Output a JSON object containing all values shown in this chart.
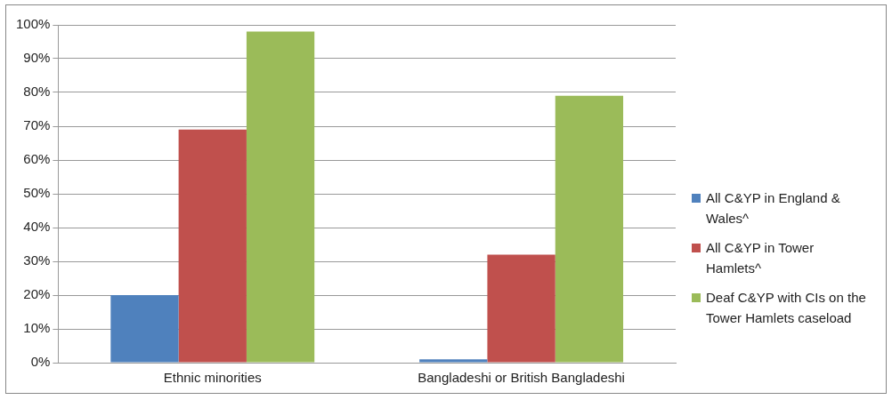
{
  "chart_data": {
    "type": "bar",
    "categories": [
      "Ethnic minorities",
      "Bangladeshi or British Bangladeshi"
    ],
    "series": [
      {
        "name": "All C&YP in England & Wales^",
        "color": "#4f81bd",
        "values": [
          20,
          1
        ]
      },
      {
        "name": "All C&YP in Tower Hamlets^",
        "color": "#c0504d",
        "values": [
          69,
          32
        ]
      },
      {
        "name": "Deaf C&YP with CIs on the Tower Hamlets caseload",
        "color": "#9bbb59",
        "values": [
          98,
          79
        ]
      }
    ],
    "ylim": [
      0,
      100
    ],
    "yticks": [
      {
        "value": 0,
        "label": "0%"
      },
      {
        "value": 10,
        "label": "10%"
      },
      {
        "value": 20,
        "label": "20%"
      },
      {
        "value": 30,
        "label": "30%"
      },
      {
        "value": 40,
        "label": "40%"
      },
      {
        "value": 50,
        "label": "50%"
      },
      {
        "value": 60,
        "label": "60%"
      },
      {
        "value": 70,
        "label": "70%"
      },
      {
        "value": 80,
        "label": "80%"
      },
      {
        "value": 90,
        "label": "90%"
      },
      {
        "value": 100,
        "label": "100%"
      }
    ],
    "grid": "y",
    "legend": "right"
  }
}
